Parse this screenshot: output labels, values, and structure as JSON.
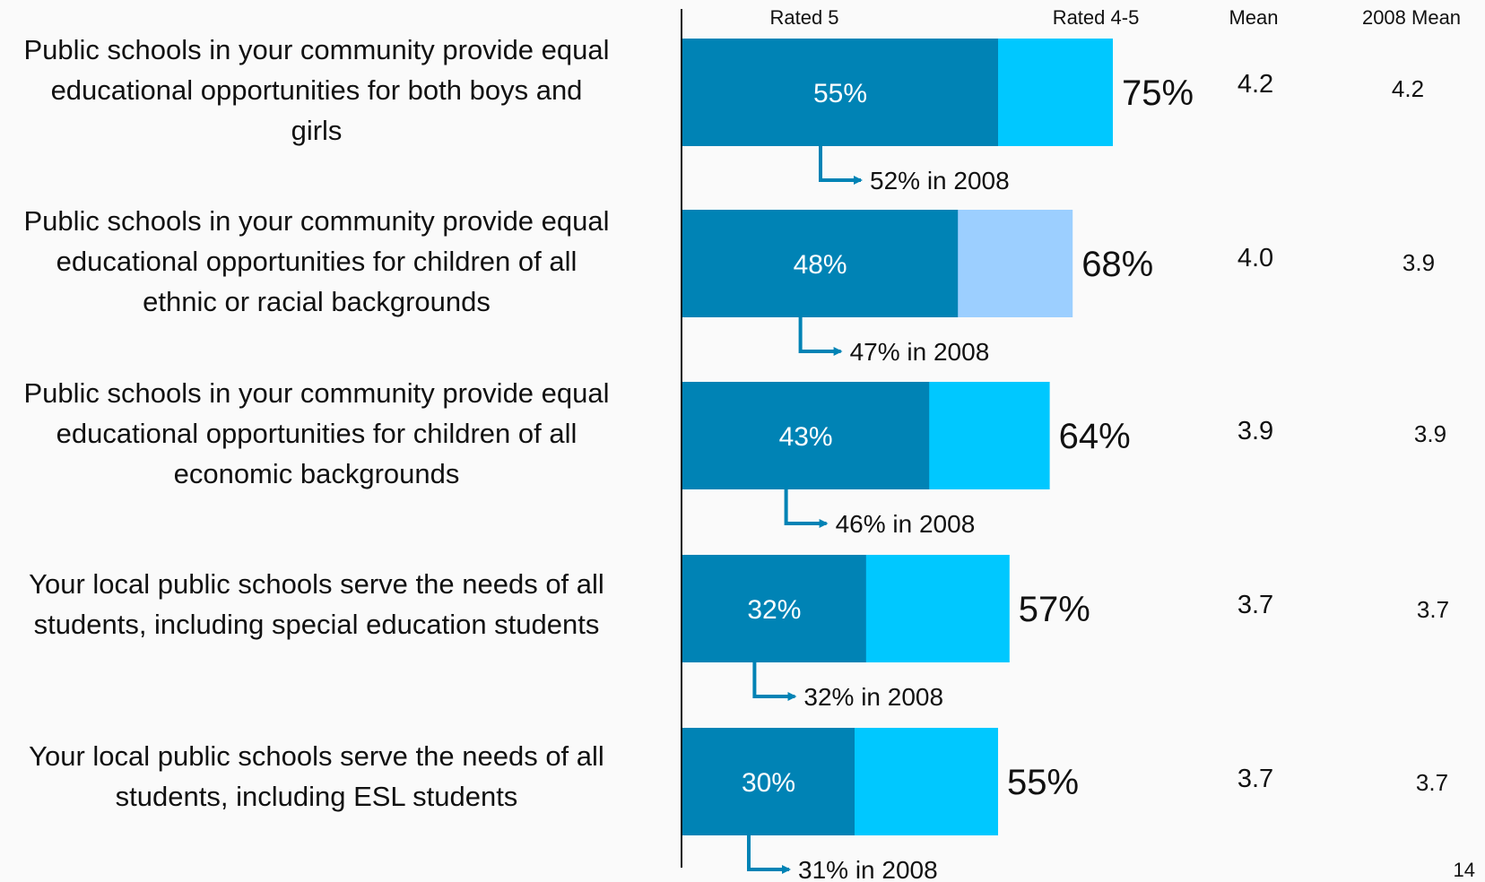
{
  "chart_data": {
    "type": "bar",
    "orientation": "horizontal",
    "stacked": true,
    "xlim": [
      0,
      100
    ],
    "columns": {
      "rated5": "Rated 5",
      "rated45": "Rated 4-5",
      "mean": "Mean",
      "mean2008": "2008 Mean"
    },
    "rows": [
      {
        "label_lines": [
          "Public schools in your community provide equal",
          "educational opportunities for both boys and",
          "girls"
        ],
        "rated5": 55,
        "rated45": 75,
        "rated5_text": "55%",
        "rated45_text": "75%",
        "mean": "4.2",
        "mean2008": "4.2",
        "prior_text": "52% in 2008",
        "top_color": "#00c8ff"
      },
      {
        "label_lines": [
          "Public schools in your community provide equal",
          "educational opportunities for children of all",
          "ethnic or racial backgrounds"
        ],
        "rated5": 48,
        "rated45": 68,
        "rated5_text": "48%",
        "rated45_text": "68%",
        "mean": "4.0",
        "mean2008": "3.9",
        "prior_text": "47% in 2008",
        "top_color": "#9ccfff"
      },
      {
        "label_lines": [
          "Public schools in your community provide equal",
          "educational opportunities for children of all",
          "economic backgrounds"
        ],
        "rated5": 43,
        "rated45": 64,
        "rated5_text": "43%",
        "rated45_text": "64%",
        "mean": "3.9",
        "mean2008": "3.9",
        "prior_text": "46% in 2008",
        "top_color": "#00c8ff"
      },
      {
        "label_lines": [
          "Your local public schools serve the needs of all",
          "students, including special education students"
        ],
        "rated5": 32,
        "rated45": 57,
        "rated5_text": "32%",
        "rated45_text": "57%",
        "mean": "3.7",
        "mean2008": "3.7",
        "prior_text": "32% in 2008",
        "top_color": "#00c8ff"
      },
      {
        "label_lines": [
          "Your local public schools serve the needs of all",
          "students, including ESL students"
        ],
        "rated5": 30,
        "rated45": 55,
        "rated5_text": "30%",
        "rated45_text": "55%",
        "mean": "3.7",
        "mean2008": "3.7",
        "prior_text": "31% in 2008",
        "top_color": "#00c8ff"
      }
    ],
    "colors": {
      "rated5": "#0083b5",
      "arrow": "#0083b5",
      "axis": "#111111"
    }
  },
  "page_number": "14"
}
